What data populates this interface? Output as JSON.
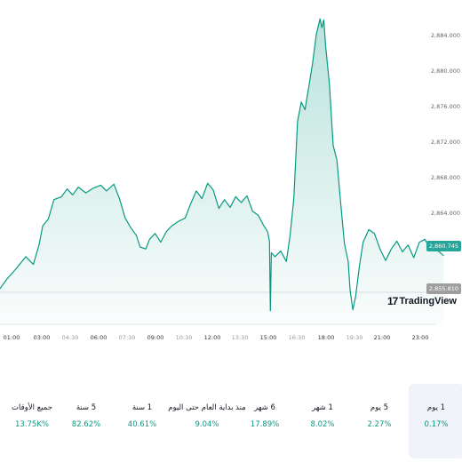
{
  "chart_data": {
    "type": "area",
    "price_ticks": [
      "2,884.000",
      "2,880.000",
      "2,876.000",
      "2,872.000",
      "2,868.000",
      "2,864.000",
      "2,855.810"
    ],
    "current_price": "2,860.745",
    "previous_close": "2,855.810",
    "x_ticks": [
      {
        "label": "01:00",
        "minor": false
      },
      {
        "label": "03:00",
        "minor": false
      },
      {
        "label": "04:30",
        "minor": true
      },
      {
        "label": "06:00",
        "minor": false
      },
      {
        "label": "07:30",
        "minor": true
      },
      {
        "label": "09:00",
        "minor": false
      },
      {
        "label": "10:30",
        "minor": true
      },
      {
        "label": "12:00",
        "minor": false
      },
      {
        "label": "13:30",
        "minor": true
      },
      {
        "label": "15:00",
        "minor": false
      },
      {
        "label": "16:30",
        "minor": true
      },
      {
        "label": "18:00",
        "minor": false
      },
      {
        "label": "19:30",
        "minor": true
      },
      {
        "label": "21:00",
        "minor": false
      },
      {
        "label": "23:00",
        "minor": false
      }
    ],
    "series": [
      {
        "values": [
          [
            0.5,
            2857.0
          ],
          [
            1.0,
            2858.3
          ],
          [
            1.5,
            2859.4
          ],
          [
            2.0,
            2860.6
          ],
          [
            2.4,
            2859.8
          ],
          [
            2.7,
            2861.8
          ],
          [
            2.9,
            2863.8
          ],
          [
            3.2,
            2864.5
          ],
          [
            3.5,
            2866.5
          ],
          [
            3.9,
            2866.8
          ],
          [
            4.2,
            2867.6
          ],
          [
            4.5,
            2867.0
          ],
          [
            4.8,
            2867.8
          ],
          [
            5.2,
            2867.2
          ],
          [
            5.6,
            2867.7
          ],
          [
            6.0,
            2868.0
          ],
          [
            6.3,
            2867.4
          ],
          [
            6.7,
            2868.1
          ],
          [
            7.0,
            2866.6
          ],
          [
            7.3,
            2864.6
          ],
          [
            7.6,
            2863.6
          ],
          [
            7.9,
            2862.8
          ],
          [
            8.1,
            2861.6
          ],
          [
            8.4,
            2861.4
          ],
          [
            8.6,
            2862.4
          ],
          [
            8.9,
            2863.0
          ],
          [
            9.2,
            2862.1
          ],
          [
            9.5,
            2863.2
          ],
          [
            9.8,
            2863.8
          ],
          [
            10.1,
            2864.2
          ],
          [
            10.5,
            2864.6
          ],
          [
            10.8,
            2866.1
          ],
          [
            11.1,
            2867.4
          ],
          [
            11.4,
            2866.6
          ],
          [
            11.7,
            2868.2
          ],
          [
            12.0,
            2867.5
          ],
          [
            12.3,
            2865.6
          ],
          [
            12.6,
            2866.5
          ],
          [
            12.9,
            2865.7
          ],
          [
            13.2,
            2866.8
          ],
          [
            13.5,
            2866.2
          ],
          [
            13.8,
            2866.9
          ],
          [
            14.1,
            2865.3
          ],
          [
            14.4,
            2864.9
          ],
          [
            14.7,
            2863.8
          ],
          [
            14.9,
            2863.2
          ],
          [
            15.0,
            2862.2
          ],
          [
            15.05,
            2855.0
          ],
          [
            15.1,
            2861.0
          ],
          [
            15.3,
            2860.6
          ],
          [
            15.6,
            2861.2
          ],
          [
            15.9,
            2860.1
          ],
          [
            16.1,
            2862.8
          ],
          [
            16.3,
            2866.6
          ],
          [
            16.5,
            2874.6
          ],
          [
            16.7,
            2876.6
          ],
          [
            16.9,
            2875.8
          ],
          [
            17.1,
            2878.2
          ],
          [
            17.3,
            2880.6
          ],
          [
            17.5,
            2883.6
          ],
          [
            17.7,
            2885.2
          ],
          [
            17.8,
            2884.3
          ],
          [
            17.9,
            2885.1
          ],
          [
            18.0,
            2882.4
          ],
          [
            18.2,
            2878.4
          ],
          [
            18.4,
            2872.1
          ],
          [
            18.6,
            2870.6
          ],
          [
            18.8,
            2866.2
          ],
          [
            19.0,
            2862.0
          ],
          [
            19.2,
            2860.1
          ],
          [
            19.3,
            2857.2
          ],
          [
            19.45,
            2855.1
          ],
          [
            19.6,
            2856.5
          ],
          [
            19.8,
            2859.6
          ],
          [
            20.0,
            2862.1
          ],
          [
            20.3,
            2863.4
          ],
          [
            20.6,
            2863.0
          ],
          [
            20.9,
            2861.4
          ],
          [
            21.2,
            2860.2
          ],
          [
            21.5,
            2861.4
          ],
          [
            21.8,
            2862.2
          ],
          [
            22.1,
            2861.1
          ],
          [
            22.4,
            2861.8
          ],
          [
            22.7,
            2860.5
          ],
          [
            23.0,
            2862.1
          ],
          [
            23.3,
            2862.4
          ],
          [
            23.6,
            2861.3
          ],
          [
            23.8,
            2861.9
          ],
          [
            24.0,
            2861.2
          ],
          [
            24.3,
            2860.7
          ]
        ]
      }
    ]
  },
  "periods": [
    {
      "label": "1 يوم",
      "value": "0.17%",
      "active": true
    },
    {
      "label": "5 يوم",
      "value": "2.27%",
      "active": false
    },
    {
      "label": "1 شهر",
      "value": "8.02%",
      "active": false
    },
    {
      "label": "6 شهر",
      "value": "17.89%",
      "active": false
    },
    {
      "label": "منذ بداية العام حتى اليوم",
      "value": "9.04%",
      "active": false
    },
    {
      "label": "1 سنة",
      "value": "40.61%",
      "active": false
    },
    {
      "label": "5 سنة",
      "value": "82.62%",
      "active": false
    },
    {
      "label": "جميع الأوقات",
      "value": "13.75K%",
      "active": false
    }
  ],
  "logo": {
    "mark": "17",
    "text": "TradingView"
  },
  "colors": {
    "line": "#089981",
    "positive": "#089981",
    "badge": "#26a69a",
    "prev_close": "#9e9e9e"
  }
}
